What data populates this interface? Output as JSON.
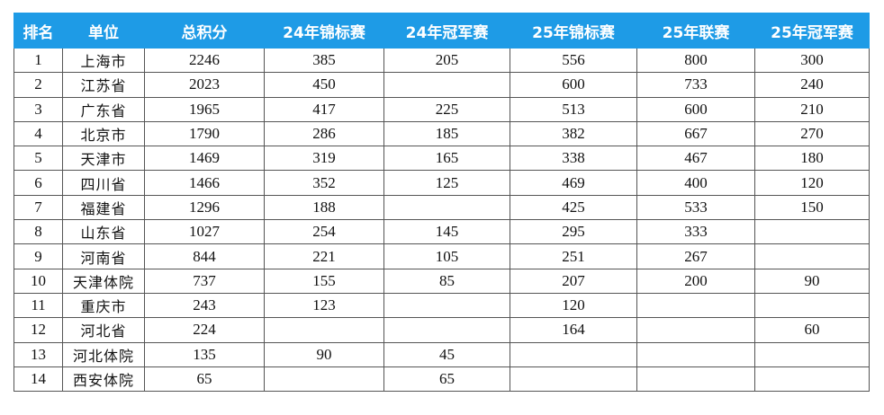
{
  "table": {
    "headers": [
      "排名",
      "单位",
      "总积分",
      "24年锦标赛",
      "24年冠军赛",
      "25年锦标赛",
      "25年联赛",
      "25年冠军赛"
    ],
    "rows": [
      [
        "1",
        "上海市",
        "2246",
        "385",
        "205",
        "556",
        "800",
        "300"
      ],
      [
        "2",
        "江苏省",
        "2023",
        "450",
        "",
        "600",
        "733",
        "240"
      ],
      [
        "3",
        "广东省",
        "1965",
        "417",
        "225",
        "513",
        "600",
        "210"
      ],
      [
        "4",
        "北京市",
        "1790",
        "286",
        "185",
        "382",
        "667",
        "270"
      ],
      [
        "5",
        "天津市",
        "1469",
        "319",
        "165",
        "338",
        "467",
        "180"
      ],
      [
        "6",
        "四川省",
        "1466",
        "352",
        "125",
        "469",
        "400",
        "120"
      ],
      [
        "7",
        "福建省",
        "1296",
        "188",
        "",
        "425",
        "533",
        "150"
      ],
      [
        "8",
        "山东省",
        "1027",
        "254",
        "145",
        "295",
        "333",
        ""
      ],
      [
        "9",
        "河南省",
        "844",
        "221",
        "105",
        "251",
        "267",
        ""
      ],
      [
        "10",
        "天津体院",
        "737",
        "155",
        "85",
        "207",
        "200",
        "90"
      ],
      [
        "11",
        "重庆市",
        "243",
        "123",
        "",
        "120",
        "",
        ""
      ],
      [
        "12",
        "河北省",
        "224",
        "",
        "",
        "164",
        "",
        "60"
      ],
      [
        "13",
        "河北体院",
        "135",
        "90",
        "45",
        "",
        "",
        ""
      ],
      [
        "14",
        "西安体院",
        "65",
        "",
        "65",
        "",
        "",
        ""
      ]
    ]
  },
  "colors": {
    "header_bg": "#1e9be6",
    "header_text": "#ffffff",
    "grid": "#555555"
  }
}
